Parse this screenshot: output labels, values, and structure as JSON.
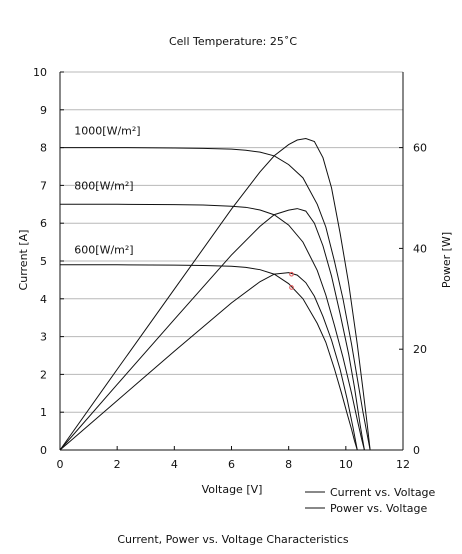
{
  "chart_data": {
    "type": "line",
    "title": "Cell Temperature:  25˚C",
    "caption": "Current, Power vs. Voltage Characteristics",
    "xlabel": "Voltage [V]",
    "ylabel_left": "Current [A]",
    "ylabel_right": "Power [W]",
    "xlim": [
      0,
      12
    ],
    "ylim_left": [
      0,
      10
    ],
    "ylim_right": [
      0,
      75
    ],
    "xticks": [
      0,
      2,
      4,
      6,
      8,
      10,
      12
    ],
    "yticks_left": [
      0,
      1,
      2,
      3,
      4,
      5,
      6,
      7,
      8,
      9,
      10
    ],
    "yticks_right": [
      0,
      20,
      40,
      60
    ],
    "grid": "horizontal",
    "legend": {
      "position": "bottom-right",
      "entries": [
        "Current vs. Voltage",
        "Power vs. Voltage"
      ]
    },
    "irradiance_labels": [
      {
        "text": "1000[W/m²]",
        "x": 0.5,
        "y": 8.45
      },
      {
        "text": "800[W/m²]",
        "x": 0.5,
        "y": 7.0
      },
      {
        "text": "600[W/m²]",
        "x": 0.5,
        "y": 5.3
      }
    ],
    "current_series": [
      {
        "irradiance": "1000[W/m²]",
        "x": [
          0,
          2,
          4,
          5,
          6,
          6.5,
          7,
          7.5,
          8,
          8.5,
          9,
          9.3,
          9.6,
          9.9,
          10.2,
          10.4,
          10.6,
          10.75,
          10.85
        ],
        "y": [
          8.0,
          8.0,
          7.99,
          7.98,
          7.96,
          7.93,
          7.88,
          7.78,
          7.55,
          7.2,
          6.5,
          5.9,
          5.0,
          4.0,
          2.8,
          1.9,
          1.0,
          0.4,
          0
        ]
      },
      {
        "irradiance": "800[W/m²]",
        "x": [
          0,
          2,
          4,
          5,
          6,
          6.5,
          7,
          7.5,
          8,
          8.5,
          9,
          9.3,
          9.6,
          9.9,
          10.2,
          10.4,
          10.55,
          10.65
        ],
        "y": [
          6.5,
          6.5,
          6.49,
          6.48,
          6.45,
          6.42,
          6.35,
          6.22,
          5.95,
          5.5,
          4.75,
          4.1,
          3.3,
          2.45,
          1.5,
          0.8,
          0.3,
          0
        ]
      },
      {
        "irradiance": "600[W/m²]",
        "x": [
          0,
          2,
          4,
          5,
          6,
          6.5,
          7,
          7.5,
          8,
          8.5,
          9,
          9.3,
          9.6,
          9.85,
          10.05,
          10.2,
          10.3,
          10.4
        ],
        "y": [
          4.9,
          4.9,
          4.89,
          4.88,
          4.86,
          4.83,
          4.77,
          4.65,
          4.4,
          4.0,
          3.35,
          2.85,
          2.15,
          1.5,
          0.95,
          0.55,
          0.25,
          0
        ]
      }
    ],
    "power_series": [
      {
        "irradiance": "1000[W/m²]",
        "x": [
          0,
          2,
          4,
          6,
          7,
          7.5,
          8,
          8.3,
          8.6,
          8.9,
          9.2,
          9.5,
          9.8,
          10.1,
          10.4,
          10.6,
          10.75,
          10.85
        ],
        "y": [
          0,
          16.0,
          31.9,
          47.8,
          55.2,
          58.4,
          60.6,
          61.5,
          61.8,
          61.2,
          58.0,
          52.0,
          43.0,
          33.0,
          21.0,
          12.0,
          5.0,
          0
        ]
      },
      {
        "irradiance": "800[W/m²]",
        "x": [
          0,
          2,
          4,
          6,
          7,
          7.5,
          8,
          8.3,
          8.6,
          8.9,
          9.2,
          9.5,
          9.8,
          10.1,
          10.3,
          10.5,
          10.65
        ],
        "y": [
          0,
          13.0,
          25.9,
          38.7,
          44.4,
          46.7,
          47.6,
          47.9,
          47.4,
          45.0,
          40.5,
          34.5,
          27.0,
          19.0,
          12.5,
          5.0,
          0
        ]
      },
      {
        "irradiance": "600[W/m²]",
        "x": [
          0,
          2,
          4,
          6,
          7,
          7.5,
          8,
          8.3,
          8.6,
          8.9,
          9.2,
          9.5,
          9.8,
          10.05,
          10.25,
          10.4
        ],
        "y": [
          0,
          9.8,
          19.6,
          29.2,
          33.4,
          34.9,
          35.2,
          34.7,
          33.2,
          30.5,
          26.5,
          21.8,
          16.0,
          10.0,
          4.5,
          0
        ]
      }
    ],
    "markers": [
      {
        "x": 8.1,
        "y": 4.65,
        "color": "#e05050"
      },
      {
        "x": 8.1,
        "y": 4.3,
        "color": "#e05050"
      }
    ]
  }
}
